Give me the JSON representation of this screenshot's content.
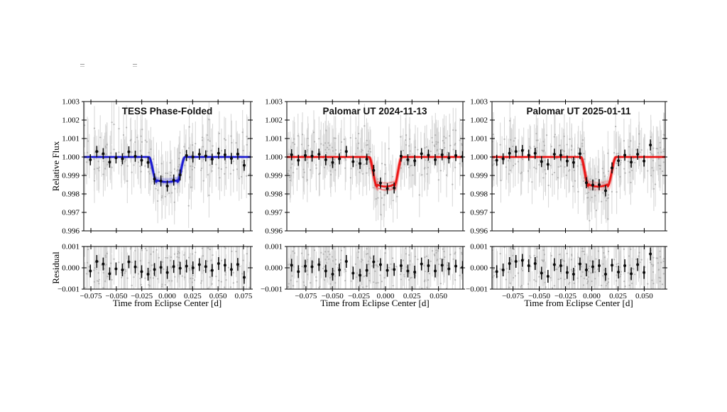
{
  "labels": {
    "ylabel_main": "Relative Flux",
    "ylabel_resid": "Residual",
    "xlabel": "Time from Eclipse Center [d]"
  },
  "chart_data": {
    "type": "scatter",
    "main_ylim": [
      0.996,
      1.003
    ],
    "main_yticks": [
      1.003,
      1.002,
      1.001,
      1.0,
      0.999,
      0.998,
      0.997,
      0.996
    ],
    "resid_ylim": [
      -0.001,
      0.001
    ],
    "resid_yticks": [
      0.001,
      0.0,
      -0.001
    ],
    "point_colors": {
      "unbinned_dot": "#b2b2b2",
      "unbinned_err": "#d6d6d6",
      "binned": "#0a0a0a"
    },
    "columns": [
      {
        "title": "TESS Phase-Folded",
        "model_color": "#1515d2",
        "xlim": [
          -0.082,
          0.082
        ],
        "xticks": [
          -0.075,
          -0.05,
          -0.025,
          0.0,
          0.025,
          0.05,
          0.075
        ],
        "model": {
          "baseline": 1.0,
          "depth": 0.00135,
          "t1": -0.018,
          "t2": -0.0105,
          "t3": 0.01,
          "t4": 0.0175,
          "ensemble_draws": 24
        },
        "binned": {
          "y_err": 0.0003,
          "x": [
            -0.0755,
            -0.0692,
            -0.0629,
            -0.0566,
            -0.0503,
            -0.044,
            -0.0377,
            -0.0314,
            -0.0251,
            -0.0188,
            -0.0125,
            -0.0062,
            0.0001,
            0.0064,
            0.0127,
            0.019,
            0.0253,
            0.0316,
            0.0379,
            0.0442,
            0.0505,
            0.0568,
            0.0631,
            0.0694,
            0.0757
          ],
          "residual": [
            -0.00015,
            0.0003,
            0.00018,
            -0.00028,
            -5e-05,
            -0.0001,
            0.00028,
            4e-05,
            -0.00018,
            -0.0003,
            -8e-05,
            2e-05,
            -0.00022,
            6e-05,
            -2e-05,
            8e-05,
            0.0,
            0.00015,
            6e-05,
            -0.00012,
            0.0002,
            0.00012,
            -8e-05,
            0.00016,
            -0.00045
          ]
        },
        "unbinned": {
          "n": 200,
          "scatter_sigma": 0.0007,
          "y_err": 0.0012,
          "seed": 11
        }
      },
      {
        "title": "Palomar UT 2024-11-13",
        "model_color": "#ec0f0f",
        "xlim": [
          -0.093,
          0.073
        ],
        "xticks": [
          -0.075,
          -0.05,
          -0.025,
          0.0,
          0.025,
          0.05
        ],
        "model": {
          "baseline": 1.0,
          "depth": 0.0016,
          "t1": -0.0155,
          "t2": -0.008,
          "t3": 0.008,
          "t4": 0.0155,
          "ensemble_draws": 24
        },
        "binned": {
          "y_err": 0.0003,
          "x": [
            -0.0885,
            -0.0821,
            -0.0756,
            -0.0692,
            -0.0627,
            -0.0563,
            -0.0498,
            -0.0434,
            -0.0369,
            -0.0305,
            -0.024,
            -0.0176,
            -0.0111,
            -0.0047,
            0.0018,
            0.0082,
            0.0147,
            0.0211,
            0.0276,
            0.034,
            0.0405,
            0.0469,
            0.0534,
            0.0598,
            0.0663,
            0.0727
          ],
          "residual": [
            0.00012,
            -0.00018,
            8e-05,
            5e-05,
            0.00015,
            -0.00015,
            -0.0003,
            -0.0001,
            0.0003,
            -0.00025,
            -0.00035,
            -0.00012,
            0.00028,
            0.00015,
            -0.00012,
            -8e-05,
            0.0001,
            -0.00015,
            -0.0002,
            0.00018,
            0.0001,
            -0.00015,
            0.00012,
            -5e-05,
            8e-05,
            2e-05
          ]
        },
        "unbinned": {
          "n": 230,
          "scatter_sigma": 0.0007,
          "y_err": 0.0012,
          "seed": 23
        }
      },
      {
        "title": "Palomar UT 2025-01-11",
        "model_color": "#ec0f0f",
        "xlim": [
          -0.095,
          0.07
        ],
        "xticks": [
          -0.075,
          -0.05,
          -0.025,
          0.0,
          0.025,
          0.05
        ],
        "model": {
          "baseline": 1.0,
          "depth": 0.0016,
          "t1": -0.0105,
          "t2": -0.003,
          "t3": 0.015,
          "t4": 0.023,
          "ensemble_draws": 24
        },
        "binned": {
          "y_err": 0.0003,
          "x": [
            -0.0905,
            -0.0844,
            -0.0783,
            -0.0722,
            -0.0661,
            -0.06,
            -0.0539,
            -0.0478,
            -0.0417,
            -0.0356,
            -0.0295,
            -0.0234,
            -0.0173,
            -0.0112,
            -0.0051,
            0.001,
            0.0071,
            0.0132,
            0.0193,
            0.0254,
            0.0315,
            0.0376,
            0.0437,
            0.0498,
            0.0559
          ],
          "residual": [
            -0.00018,
            -0.0001,
            0.0002,
            0.0003,
            0.00035,
            0.0001,
            0.0002,
            -0.00025,
            -0.0004,
            0.00015,
            0.0001,
            -0.00022,
            -0.0003,
            0.00018,
            -0.0001,
            5e-05,
            0.0001,
            -0.0003,
            0.00012,
            -0.0002,
            0.0001,
            -0.00028,
            0.00015,
            -0.00022,
            0.00065
          ]
        },
        "unbinned": {
          "n": 230,
          "scatter_sigma": 0.0007,
          "y_err": 0.0012,
          "seed": 37
        }
      }
    ]
  }
}
